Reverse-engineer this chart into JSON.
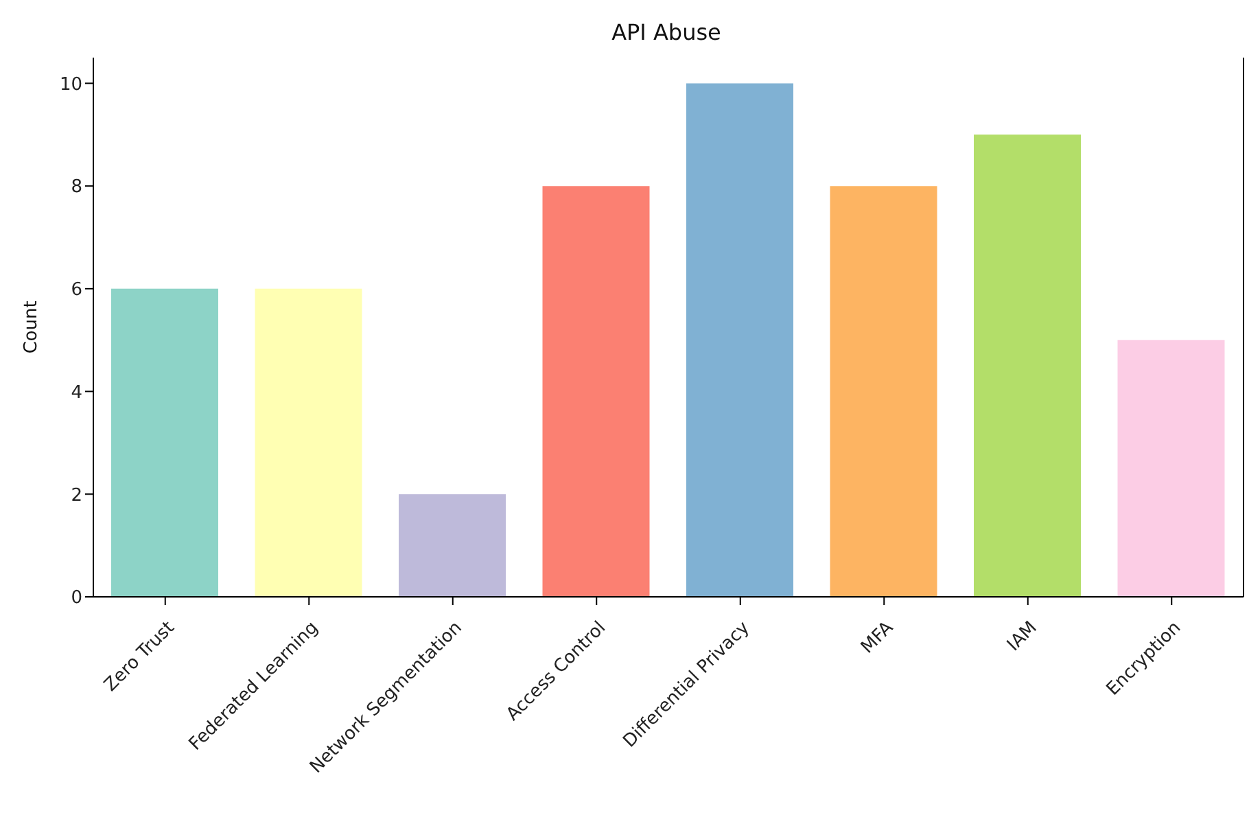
{
  "chart_data": {
    "type": "bar",
    "title": "API Abuse",
    "ylabel": "Count",
    "categories": [
      "Zero Trust",
      "Federated Learning",
      "Network Segmentation",
      "Access Control",
      "Differential Privacy",
      "MFA",
      "IAM",
      "Encryption"
    ],
    "values": [
      6,
      6,
      2,
      8,
      10,
      8,
      9,
      5
    ],
    "colors": [
      "#8dd3c7",
      "#ffffb3",
      "#bebada",
      "#fb8072",
      "#80b1d3",
      "#fdb462",
      "#b3de69",
      "#fccde5"
    ],
    "ylim": [
      0,
      10.5
    ],
    "yticks": [
      0,
      2,
      4,
      6,
      8,
      10
    ]
  }
}
